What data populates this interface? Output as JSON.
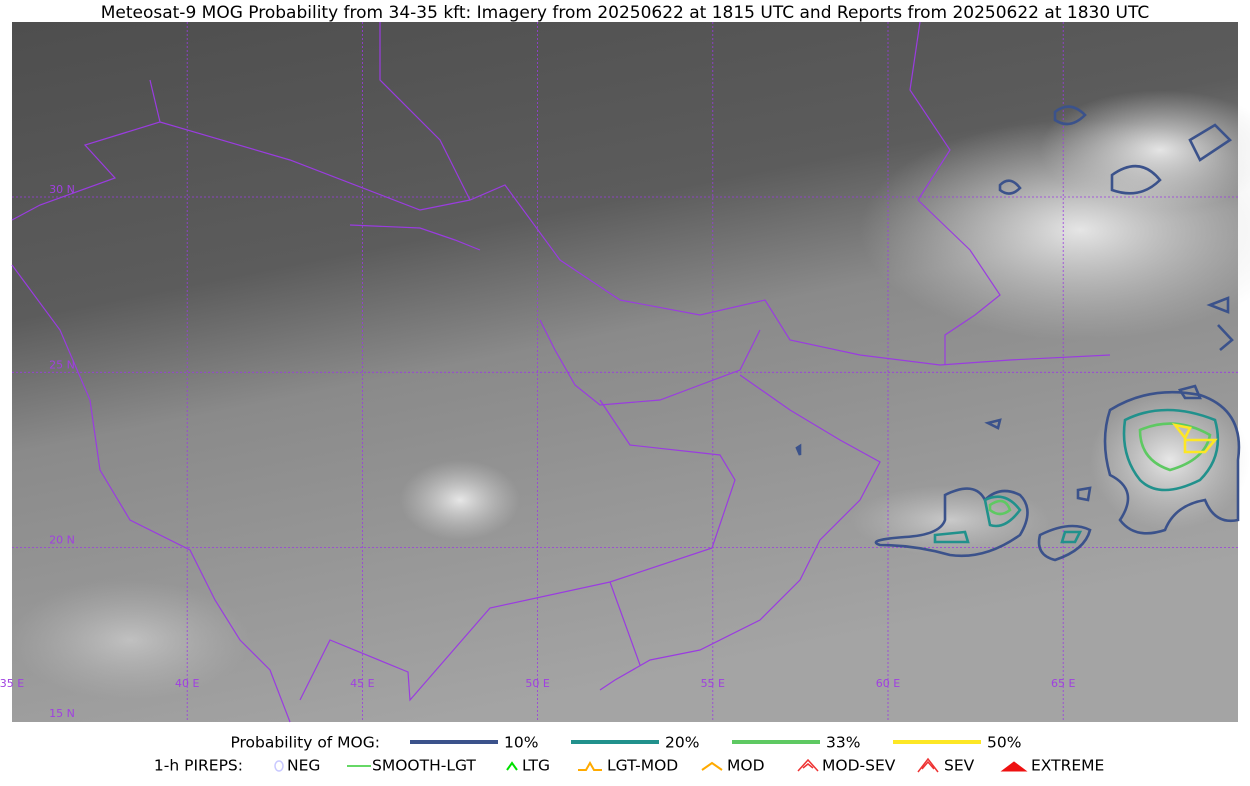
{
  "title": "Meteosat-9 MOG Probability from 34-35 kft: Imagery from 20250622 at 1815 UTC and Reports from 20250622 at 1830 UTC",
  "map": {
    "longitude_labels": [
      "35 E",
      "40 E",
      "45 E",
      "50 E",
      "55 E",
      "60 E",
      "65 E"
    ],
    "latitude_labels": [
      "30 N",
      "25 N",
      "20 N",
      "15 N"
    ]
  },
  "legend": {
    "probability": {
      "label": "Probability of MOG:",
      "items": [
        {
          "name": "10%",
          "color": "#3b528b"
        },
        {
          "name": "20%",
          "color": "#21918c"
        },
        {
          "name": "33%",
          "color": "#5ec962"
        },
        {
          "name": "50%",
          "color": "#fde725"
        }
      ]
    },
    "pireps": {
      "label": "1-h PIREPS:",
      "items": [
        {
          "name": "NEG",
          "color": "#c8c8ff"
        },
        {
          "name": "SMOOTH-LGT",
          "color": "#33cc33"
        },
        {
          "name": "LTG",
          "color": "#00e000"
        },
        {
          "name": "LGT-MOD",
          "color": "#ffaa00"
        },
        {
          "name": "MOD",
          "color": "#ffaa00"
        },
        {
          "name": "MOD-SEV",
          "color": "#ee3333"
        },
        {
          "name": "SEV",
          "color": "#ee3333"
        },
        {
          "name": "EXTREME",
          "color": "#ee1111"
        }
      ]
    }
  }
}
